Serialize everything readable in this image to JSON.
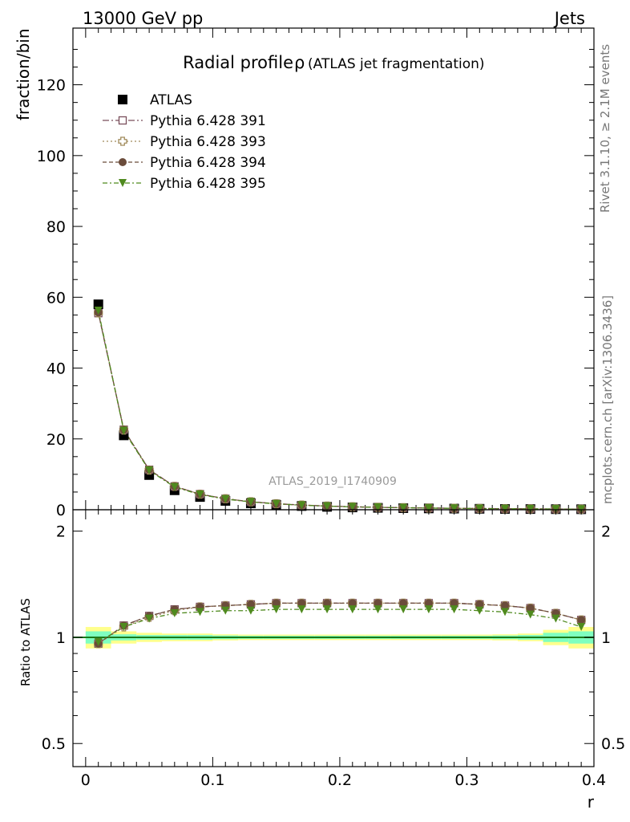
{
  "header": {
    "left": "13000 GeV pp",
    "right": "Jets"
  },
  "side_labels": {
    "rivet": "Rivet 3.1.10, ≥ 2.1M events",
    "mcplots": "mcplots.cern.ch [arXiv:1306.3436]"
  },
  "chart_data": [
    {
      "type": "scatter",
      "panel": "main",
      "title": "Radial profile",
      "title_symbol": "ρ",
      "subtitle": "(ATLAS jet fragmentation)",
      "watermark": "ATLAS_2019_I1740909",
      "ylabel": "fraction/bin",
      "xlabel": "r",
      "xlim": [
        -0.01,
        0.4
      ],
      "ylim": [
        0,
        136
      ],
      "x_ticks": [
        "0",
        "0.1",
        "0.2",
        "0.3",
        "0.4"
      ],
      "y_ticks": [
        "0",
        "20",
        "40",
        "60",
        "80",
        "100",
        "120"
      ],
      "legend_position": "top-left",
      "x": [
        0.01,
        0.03,
        0.05,
        0.07,
        0.09,
        0.11,
        0.13,
        0.15,
        0.17,
        0.19,
        0.21,
        0.23,
        0.25,
        0.27,
        0.29,
        0.31,
        0.33,
        0.35,
        0.37,
        0.39
      ],
      "series": [
        {
          "name": "ATLAS",
          "marker": "square-filled",
          "color": "#000000",
          "values": [
            58.0,
            21.0,
            9.8,
            5.5,
            3.6,
            2.5,
            1.8,
            1.35,
            1.05,
            0.82,
            0.66,
            0.54,
            0.45,
            0.38,
            0.32,
            0.27,
            0.23,
            0.2,
            0.17,
            0.15
          ]
        },
        {
          "name": "Pythia 6.428 391",
          "marker": "square-open",
          "color": "#7a4f5c",
          "values": [
            55.5,
            22.6,
            11.3,
            6.6,
            4.4,
            3.1,
            2.25,
            1.7,
            1.33,
            1.04,
            0.84,
            0.69,
            0.58,
            0.49,
            0.41,
            0.35,
            0.29,
            0.25,
            0.2,
            0.17
          ]
        },
        {
          "name": "Pythia 6.428 393",
          "marker": "cross-open",
          "color": "#a08a5a",
          "values": [
            55.6,
            22.5,
            11.2,
            6.6,
            4.4,
            3.1,
            2.25,
            1.7,
            1.32,
            1.04,
            0.84,
            0.69,
            0.58,
            0.49,
            0.41,
            0.35,
            0.29,
            0.25,
            0.2,
            0.17
          ]
        },
        {
          "name": "Pythia 6.428 394",
          "marker": "circle-filled",
          "color": "#6b4c3b",
          "values": [
            55.7,
            22.6,
            11.3,
            6.6,
            4.4,
            3.1,
            2.25,
            1.7,
            1.33,
            1.04,
            0.84,
            0.69,
            0.58,
            0.49,
            0.41,
            0.35,
            0.29,
            0.25,
            0.2,
            0.17
          ]
        },
        {
          "name": "Pythia 6.428 395",
          "marker": "triangle-down-filled",
          "color": "#4f8a1e",
          "values": [
            56.2,
            22.3,
            11.1,
            6.4,
            4.3,
            3.0,
            2.2,
            1.65,
            1.28,
            1.0,
            0.81,
            0.67,
            0.56,
            0.47,
            0.39,
            0.33,
            0.28,
            0.24,
            0.19,
            0.16
          ]
        }
      ]
    },
    {
      "type": "scatter",
      "panel": "ratio",
      "ylabel": "Ratio to ATLAS",
      "xlabel": "r",
      "xlim": [
        -0.01,
        0.4
      ],
      "ylim": [
        0.43,
        2.3
      ],
      "y_scale": "log",
      "y_ticks": [
        "0.5",
        "1",
        "2"
      ],
      "reference_line": 1,
      "band_colors": {
        "inner": "#7fffbf",
        "outer": "#ffff8c"
      },
      "x": [
        0.01,
        0.03,
        0.05,
        0.07,
        0.09,
        0.11,
        0.13,
        0.15,
        0.17,
        0.19,
        0.21,
        0.23,
        0.25,
        0.27,
        0.29,
        0.31,
        0.33,
        0.35,
        0.37,
        0.39
      ],
      "uncertainty_inner": [
        0.04,
        0.02,
        0.015,
        0.015,
        0.015,
        0.012,
        0.01,
        0.01,
        0.01,
        0.01,
        0.01,
        0.01,
        0.01,
        0.01,
        0.01,
        0.01,
        0.012,
        0.015,
        0.03,
        0.04
      ],
      "uncertainty_outer": [
        0.07,
        0.04,
        0.03,
        0.025,
        0.025,
        0.02,
        0.018,
        0.018,
        0.018,
        0.018,
        0.018,
        0.018,
        0.018,
        0.018,
        0.018,
        0.018,
        0.02,
        0.025,
        0.05,
        0.07
      ],
      "series": [
        {
          "name": "Pythia 6.428 391",
          "marker": "square-open",
          "color": "#7a4f5c",
          "values": [
            0.96,
            1.08,
            1.15,
            1.2,
            1.22,
            1.23,
            1.24,
            1.25,
            1.25,
            1.25,
            1.25,
            1.25,
            1.25,
            1.25,
            1.25,
            1.24,
            1.23,
            1.21,
            1.17,
            1.12
          ]
        },
        {
          "name": "Pythia 6.428 393",
          "marker": "cross-open",
          "color": "#a08a5a",
          "values": [
            0.96,
            1.07,
            1.14,
            1.19,
            1.22,
            1.23,
            1.24,
            1.25,
            1.25,
            1.25,
            1.25,
            1.25,
            1.25,
            1.25,
            1.25,
            1.24,
            1.23,
            1.21,
            1.17,
            1.12
          ]
        },
        {
          "name": "Pythia 6.428 394",
          "marker": "circle-filled",
          "color": "#6b4c3b",
          "values": [
            0.96,
            1.08,
            1.15,
            1.2,
            1.22,
            1.23,
            1.24,
            1.25,
            1.25,
            1.25,
            1.25,
            1.25,
            1.25,
            1.25,
            1.25,
            1.24,
            1.23,
            1.21,
            1.17,
            1.12
          ]
        },
        {
          "name": "Pythia 6.428 395",
          "marker": "triangle-down-filled",
          "color": "#4f8a1e",
          "values": [
            0.97,
            1.07,
            1.13,
            1.17,
            1.18,
            1.19,
            1.19,
            1.2,
            1.2,
            1.2,
            1.2,
            1.2,
            1.2,
            1.2,
            1.2,
            1.19,
            1.18,
            1.16,
            1.13,
            1.07
          ]
        }
      ]
    }
  ]
}
